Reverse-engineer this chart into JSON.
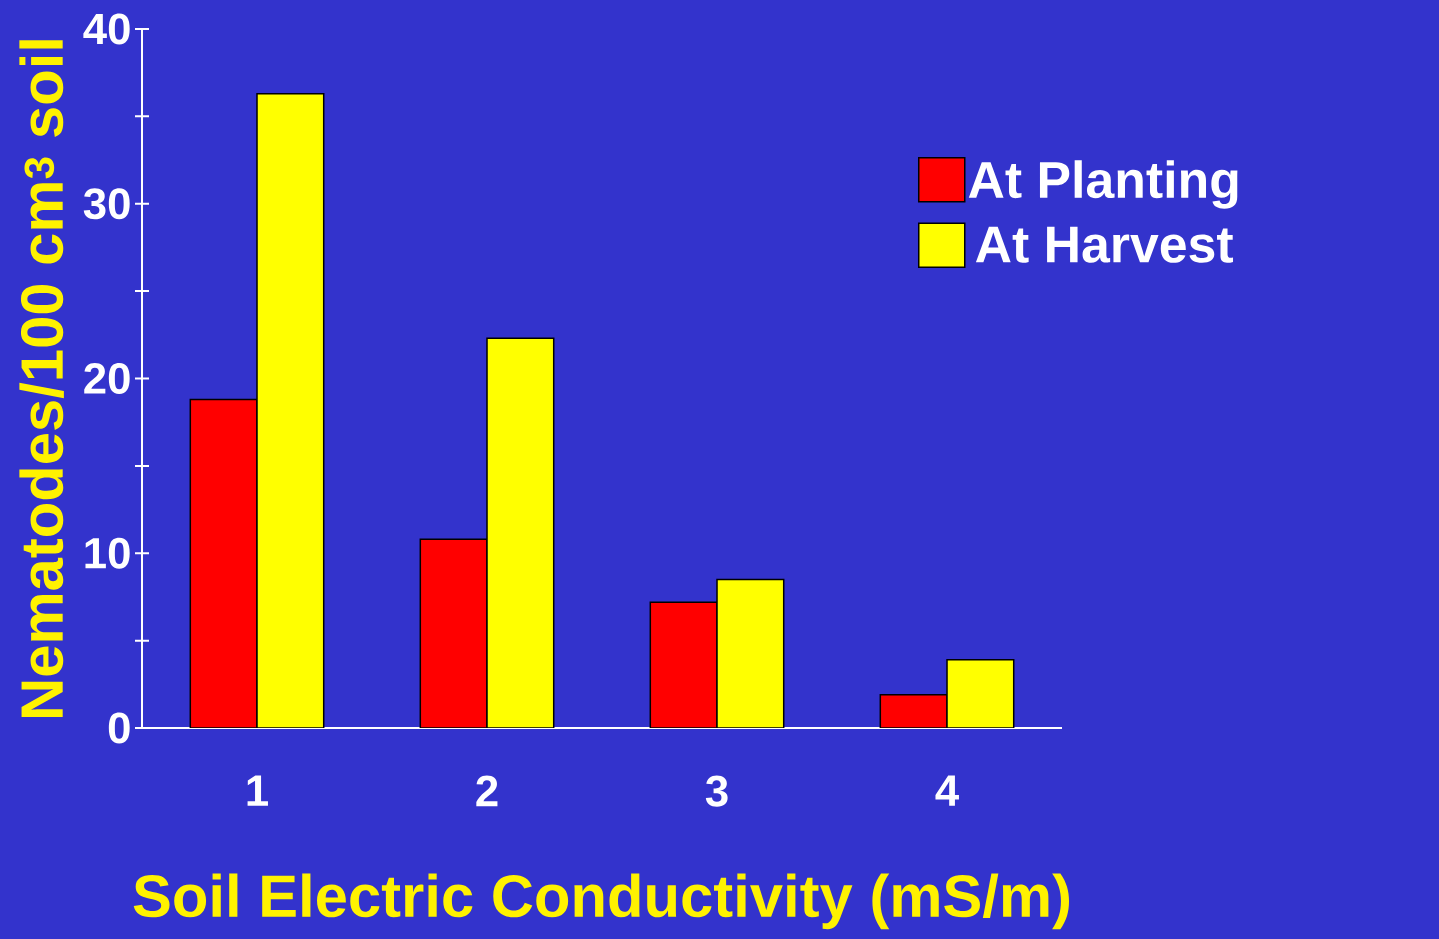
{
  "chart_data": {
    "type": "bar",
    "xlabel": "Soil Electric Conductivity (mS/m)",
    "ylabel": "Nematodes/100 cm$^{3}$ soil",
    "categories": [
      "1",
      "2",
      "3",
      "4"
    ],
    "series": [
      {
        "name": "At Planting",
        "color": "#ff0000",
        "values": [
          18.8,
          10.8,
          7.2,
          1.9
        ]
      },
      {
        "name": "At Harvest",
        "color": "#ffff00",
        "values": [
          36.3,
          22.3,
          8.5,
          3.9
        ]
      }
    ],
    "ylim": [
      0,
      40
    ],
    "yticks": [
      0,
      {
        "value": 5,
        "label": null
      },
      10,
      {
        "value": 15,
        "label": null
      },
      20,
      {
        "value": 25,
        "label": null
      },
      30,
      {
        "value": 35,
        "label": null
      },
      40
    ],
    "grid": false,
    "legend": "top right"
  }
}
